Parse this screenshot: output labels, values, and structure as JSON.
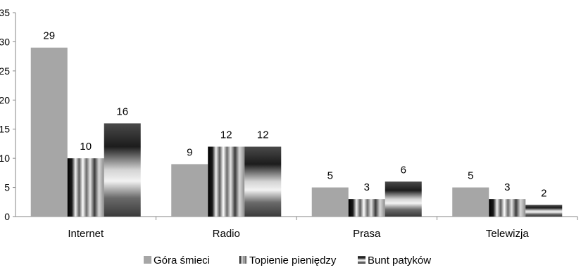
{
  "chart_data": {
    "type": "bar",
    "categories": [
      "Internet",
      "Radio",
      "Prasa",
      "Telewizja"
    ],
    "series": [
      {
        "name": "Góra śmieci",
        "values": [
          29,
          9,
          5,
          5
        ],
        "color": "#a6a6a6",
        "fill": "solid"
      },
      {
        "name": "Topienie pieniędzy",
        "values": [
          10,
          12,
          3,
          3
        ],
        "color": "#7f7f7f",
        "fill": "vertical-metallic"
      },
      {
        "name": "Bunt patyków",
        "values": [
          16,
          12,
          6,
          2
        ],
        "color": "#404040",
        "fill": "horizontal-metallic"
      }
    ],
    "ylim": [
      0,
      35
    ],
    "yticks": [
      0,
      5,
      10,
      15,
      20,
      25,
      30,
      35
    ],
    "grid": false,
    "data_labels": true,
    "legend_position": "bottom"
  }
}
